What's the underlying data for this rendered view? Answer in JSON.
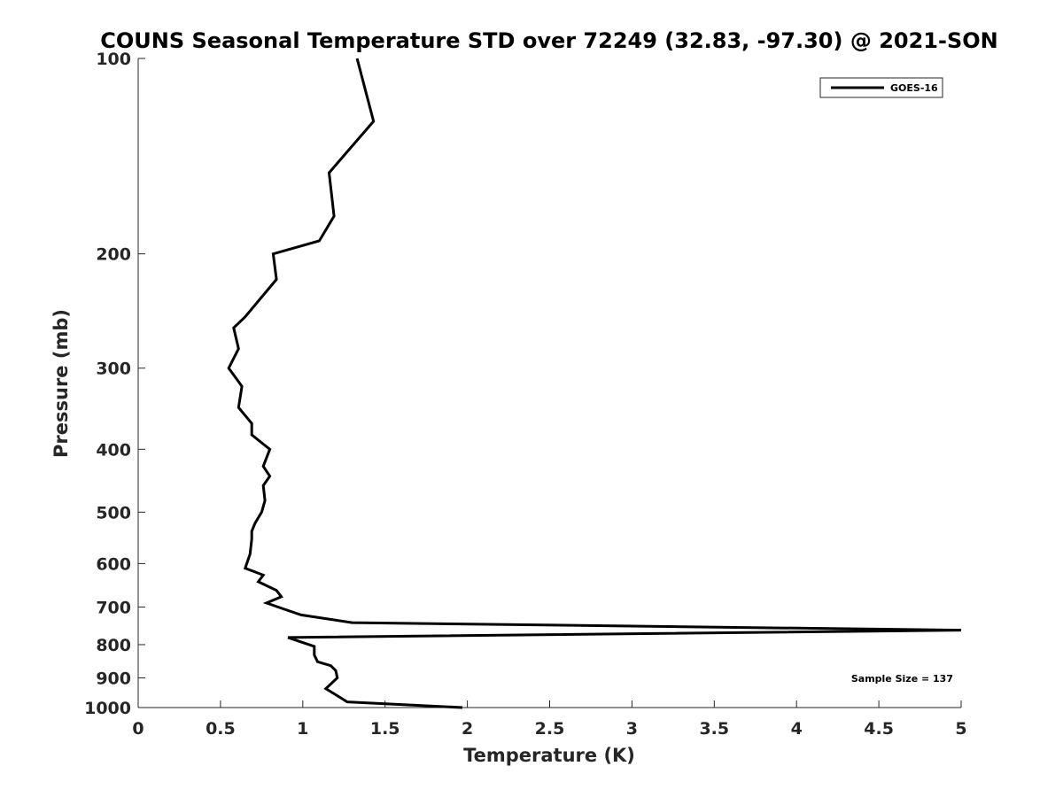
{
  "chart_data": {
    "type": "line",
    "title": "COUNS Seasonal Temperature STD over 72249 (32.83, -97.30) @ 2021-SON",
    "xlabel": "Temperature (K)",
    "ylabel": "Pressure (mb)",
    "xlim": [
      0,
      5
    ],
    "ylim": [
      100,
      1000
    ],
    "y_scale": "log",
    "y_reversed": true,
    "grid": false,
    "x_ticks": [
      0,
      0.5,
      1,
      1.5,
      2,
      2.5,
      3,
      3.5,
      4,
      4.5,
      5
    ],
    "x_tick_labels": [
      "0",
      "0.5",
      "1",
      "1.5",
      "2",
      "2.5",
      "3",
      "3.5",
      "4",
      "4.5",
      "5"
    ],
    "y_ticks": [
      100,
      200,
      300,
      400,
      500,
      600,
      700,
      800,
      900,
      1000
    ],
    "y_tick_labels": [
      "100",
      "200",
      "300",
      "400",
      "500",
      "600",
      "700",
      "800",
      "900",
      "1000"
    ],
    "legend_position": "top-right",
    "series": [
      {
        "name": "GOES-16",
        "color": "#000000",
        "points": [
          [
            1.33,
            100
          ],
          [
            1.43,
            125
          ],
          [
            1.16,
            150
          ],
          [
            1.19,
            175
          ],
          [
            1.1,
            191
          ],
          [
            0.82,
            200
          ],
          [
            0.84,
            219
          ],
          [
            0.65,
            250
          ],
          [
            0.58,
            260
          ],
          [
            0.61,
            280
          ],
          [
            0.55,
            300
          ],
          [
            0.63,
            320
          ],
          [
            0.61,
            345
          ],
          [
            0.69,
            365
          ],
          [
            0.69,
            380
          ],
          [
            0.8,
            400
          ],
          [
            0.76,
            425
          ],
          [
            0.8,
            440
          ],
          [
            0.76,
            455
          ],
          [
            0.77,
            480
          ],
          [
            0.75,
            500
          ],
          [
            0.71,
            520
          ],
          [
            0.69,
            535
          ],
          [
            0.69,
            550
          ],
          [
            0.68,
            580
          ],
          [
            0.65,
            610
          ],
          [
            0.76,
            625
          ],
          [
            0.73,
            640
          ],
          [
            0.84,
            660
          ],
          [
            0.87,
            675
          ],
          [
            0.78,
            690
          ],
          [
            0.85,
            700
          ],
          [
            0.99,
            720
          ],
          [
            1.3,
            740
          ],
          [
            5.0,
            760
          ],
          [
            0.91,
            780
          ],
          [
            1.07,
            805
          ],
          [
            1.07,
            830
          ],
          [
            1.09,
            850
          ],
          [
            1.17,
            862
          ],
          [
            1.2,
            877
          ],
          [
            1.21,
            900
          ],
          [
            1.14,
            935
          ],
          [
            1.27,
            980
          ],
          [
            1.97,
            1000
          ]
        ]
      }
    ],
    "annotations": [
      {
        "text": "Sample Size = 137",
        "position": "bottom-right"
      }
    ]
  }
}
